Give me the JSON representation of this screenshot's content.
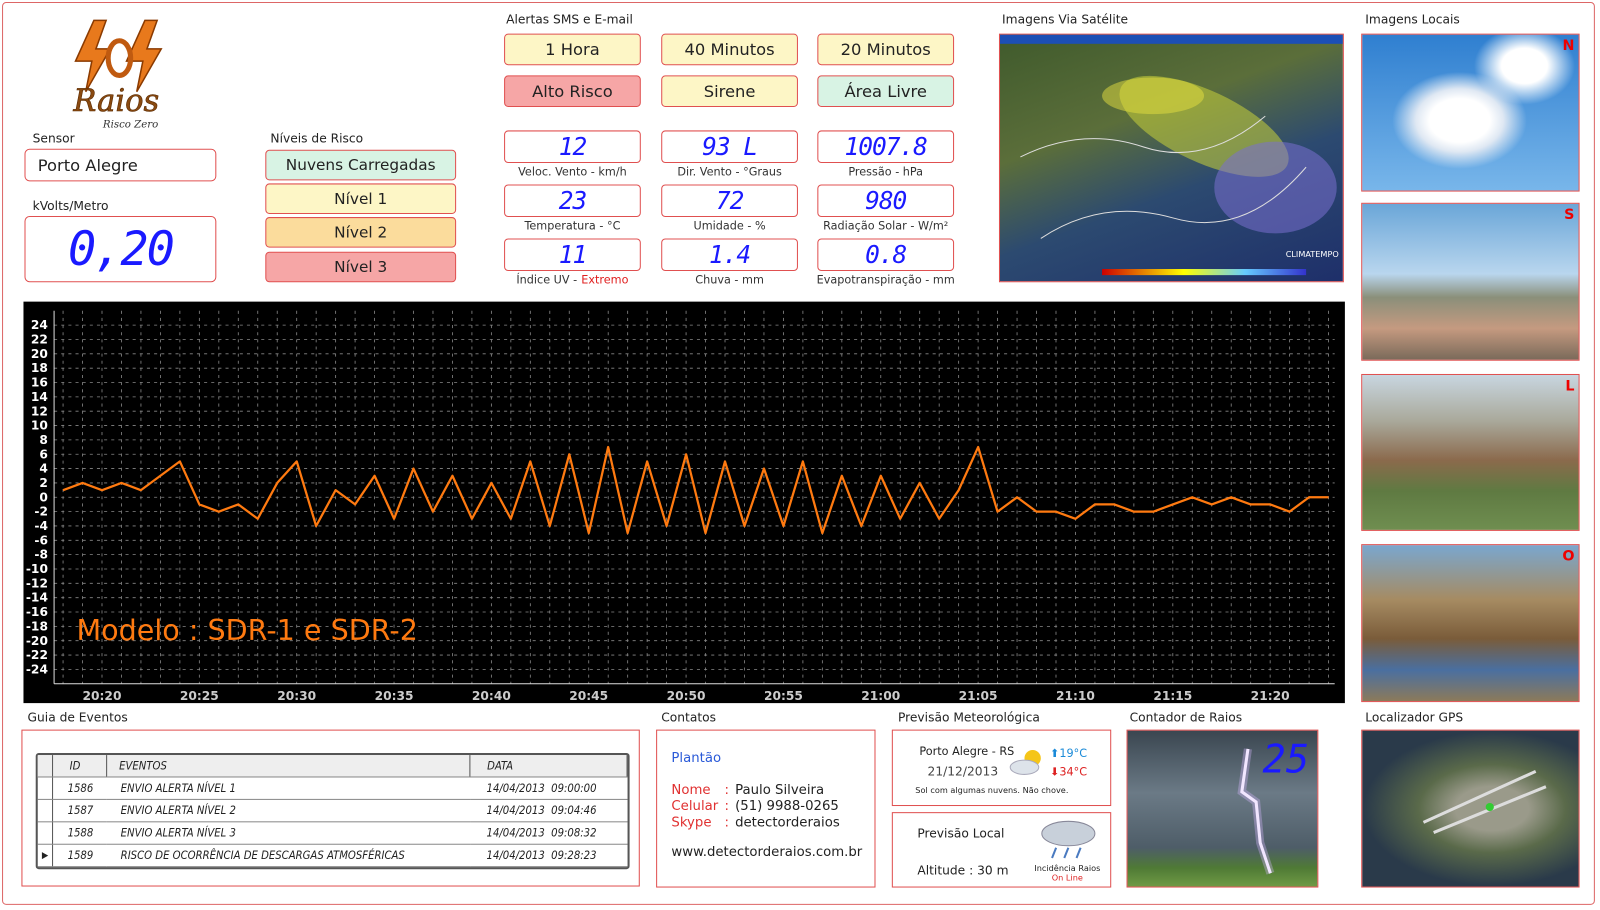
{
  "header": {
    "logo_title": "Raios",
    "logo_subtitle": "Risco Zero"
  },
  "sensor": {
    "label": "Sensor",
    "value": "Porto Alegre"
  },
  "field": {
    "label": "kVolts/Metro",
    "value": "0,20"
  },
  "risk_levels": {
    "title": "Níveis de Risco",
    "items": [
      "Nuvens Carregadas",
      "Nível 1",
      "Nível 2",
      "Nível 3"
    ]
  },
  "alerts": {
    "title": "Alertas SMS e E-mail",
    "buttons": [
      "1 Hora",
      "40 Minutos",
      "20 Minutos",
      "Alto Risco",
      "Sirene",
      "Área Livre"
    ]
  },
  "readings": [
    {
      "value": "12",
      "label": "Veloc. Vento - km/h"
    },
    {
      "value": "93 L",
      "label": "Dir. Vento - °Graus"
    },
    {
      "value": "1007.8",
      "label": "Pressão - hPa"
    },
    {
      "value": "23",
      "label": "Temperatura - °C"
    },
    {
      "value": "72",
      "label": "Umidade - %"
    },
    {
      "value": "980",
      "label": "Radiação Solar - W/m²"
    },
    {
      "value": "11",
      "label": "Índice UV -",
      "note": "Extremo"
    },
    {
      "value": "1.4",
      "label": "Chuva - mm"
    },
    {
      "value": "0.8",
      "label": "Evapotranspiração - mm"
    }
  ],
  "satellite": {
    "title": "Imagens Via Satélite",
    "brand": "CLIMATEMPO"
  },
  "local_images": {
    "title": "Imagens Locais",
    "directions": [
      "N",
      "S",
      "L",
      "O"
    ]
  },
  "chart_data": {
    "type": "line",
    "annotation": "Modelo : SDR-1 e SDR-2",
    "color": "#ff7a10",
    "categories": [
      null,
      null,
      "20:20",
      null,
      null,
      null,
      null,
      "20:25",
      null,
      null,
      null,
      null,
      "20:30",
      null,
      null,
      null,
      null,
      "20:35",
      null,
      null,
      null,
      null,
      "20:40",
      null,
      null,
      null,
      null,
      "20:45",
      null,
      null,
      null,
      null,
      "20:50",
      null,
      null,
      null,
      null,
      "20:55",
      null,
      null,
      null,
      null,
      "21:00",
      null,
      null,
      null,
      null,
      "21:05",
      null,
      null,
      null,
      null,
      "21:10",
      null,
      null,
      null,
      null,
      "21:15",
      null,
      null,
      null,
      null,
      "21:20",
      null,
      null,
      null
    ],
    "values": [
      1,
      2,
      1,
      2,
      1,
      3,
      5,
      -1,
      -2,
      -1,
      -3,
      2,
      5,
      -4,
      1,
      -1,
      3,
      -3,
      4,
      -2,
      3,
      -3,
      2,
      -3,
      5,
      -4,
      6,
      -5,
      7,
      -5,
      5,
      -4,
      6,
      -5,
      5,
      -4,
      4,
      -4,
      5,
      -5,
      3,
      -4,
      3,
      -3,
      2,
      -3,
      1,
      7,
      -2,
      0,
      -2,
      -2,
      -3,
      -1,
      -1,
      -2,
      -2,
      -1,
      0,
      -1,
      0,
      -1,
      -1,
      -2,
      0,
      0
    ],
    "ylim": [
      -26,
      26
    ],
    "yticks": [
      24,
      22,
      20,
      18,
      16,
      14,
      12,
      10,
      8,
      6,
      4,
      2,
      0,
      -2,
      -4,
      -6,
      -8,
      -10,
      -12,
      -14,
      -16,
      -18,
      -20,
      -22,
      -24
    ],
    "grid": true
  },
  "events": {
    "title": "Guia de Eventos",
    "columns": [
      "ID",
      "EVENTOS",
      "DATA"
    ],
    "rows": [
      [
        "1586",
        "ENVIO ALERTA NÍVEL 1",
        "14/04/2013  09:00:00"
      ],
      [
        "1587",
        "ENVIO ALERTA NÍVEL 2",
        "14/04/2013  09:04:46"
      ],
      [
        "1588",
        "ENVIO ALERTA NÍVEL 3",
        "14/04/2013  09:08:32"
      ],
      [
        "1589",
        "RISCO DE OCORRÊNCIA DE DESCARGAS ATMOSFÉRICAS",
        "14/04/2013  09:28:23"
      ]
    ]
  },
  "contacts": {
    "title": "Contatos",
    "heading": "Plantão",
    "items": [
      {
        "label": "Nome",
        "colon": ":",
        "value": "Paulo Silveira"
      },
      {
        "label": "Celular",
        "colon": ":",
        "value": "(51) 9988-0265"
      },
      {
        "label": "Skype",
        "colon": ":",
        "value": "detectorderaios"
      }
    ],
    "website": "www.detectorderaios.com.br"
  },
  "forecast": {
    "title": "Previsão Meteorológica",
    "city": "Porto Alegre - RS",
    "date": "21/12/2013",
    "min": "19°C",
    "max": "34°C",
    "description": "Sol com algumas nuvens. Não chove."
  },
  "local_forecast": {
    "title": "Previsão Local",
    "altitude": "Altitude : 30 m",
    "status_label": "Incidência Raios",
    "status": "On Line"
  },
  "counter": {
    "title": "Contador de Raios",
    "value": "25"
  },
  "gps": {
    "title": "Localizador GPS"
  }
}
